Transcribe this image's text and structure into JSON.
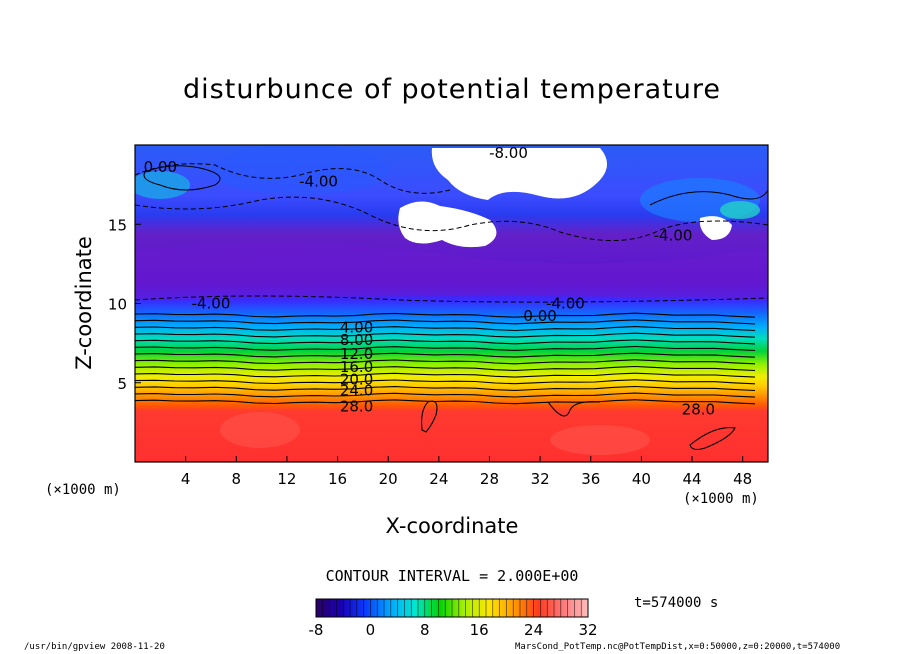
{
  "chart_data": {
    "type": "heatmap",
    "title": "disturbunce of potential temperature",
    "xlabel": "X-coordinate",
    "ylabel": "Z-coordinate",
    "x_scale_label": "(×1000 m)",
    "y_scale_label": "(×1000 m)",
    "xlim": [
      0,
      50
    ],
    "ylim": [
      0,
      20
    ],
    "x_ticks": [
      4,
      8,
      12,
      16,
      20,
      24,
      28,
      32,
      36,
      40,
      44,
      48
    ],
    "y_ticks": [
      5,
      10,
      15
    ],
    "contour_interval_text": "CONTOUR INTERVAL = 2.000E+00",
    "contour_labels": [
      {
        "text": "0.00",
        "x": 2.0,
        "z": 18.6
      },
      {
        "text": "-8.00",
        "x": 29.5,
        "z": 19.5
      },
      {
        "text": "-4.00",
        "x": 14.5,
        "z": 17.7
      },
      {
        "text": "-4.00",
        "x": 42.5,
        "z": 14.3
      },
      {
        "text": "-4.00",
        "x": 6.0,
        "z": 10.0
      },
      {
        "text": "-4.00",
        "x": 34.0,
        "z": 10.0
      },
      {
        "text": "0.00",
        "x": 32.0,
        "z": 9.2
      },
      {
        "text": "4.00",
        "x": 17.5,
        "z": 8.5
      },
      {
        "text": "8.00",
        "x": 17.5,
        "z": 7.7
      },
      {
        "text": "12.0",
        "x": 17.5,
        "z": 6.8
      },
      {
        "text": "16.0",
        "x": 17.5,
        "z": 6.0
      },
      {
        "text": "20.0",
        "x": 17.5,
        "z": 5.2
      },
      {
        "text": "24.0",
        "x": 17.5,
        "z": 4.5
      },
      {
        "text": "28.0",
        "x": 17.5,
        "z": 3.5
      },
      {
        "text": "28.0",
        "x": 44.5,
        "z": 3.3
      }
    ],
    "colorbar": {
      "min": -8,
      "max": 32,
      "ticks": [
        -8,
        0,
        8,
        16,
        24,
        32
      ],
      "colors": [
        "#2a0066",
        "#1a00b3",
        "#0a3cff",
        "#00a8ff",
        "#00e6d0",
        "#00d200",
        "#a8f000",
        "#ffe600",
        "#ff9a00",
        "#ff3a1e",
        "#ff7a7a",
        "#ffbdbd"
      ]
    },
    "time_label": "t=574000 s",
    "legend": "none",
    "grid": false
  },
  "footer": {
    "left": "/usr/bin/gpview   2008-11-20",
    "right": "MarsCond_PotTemp.nc@PotTempDist,x=0:50000,z=0:20000,t=574000"
  }
}
